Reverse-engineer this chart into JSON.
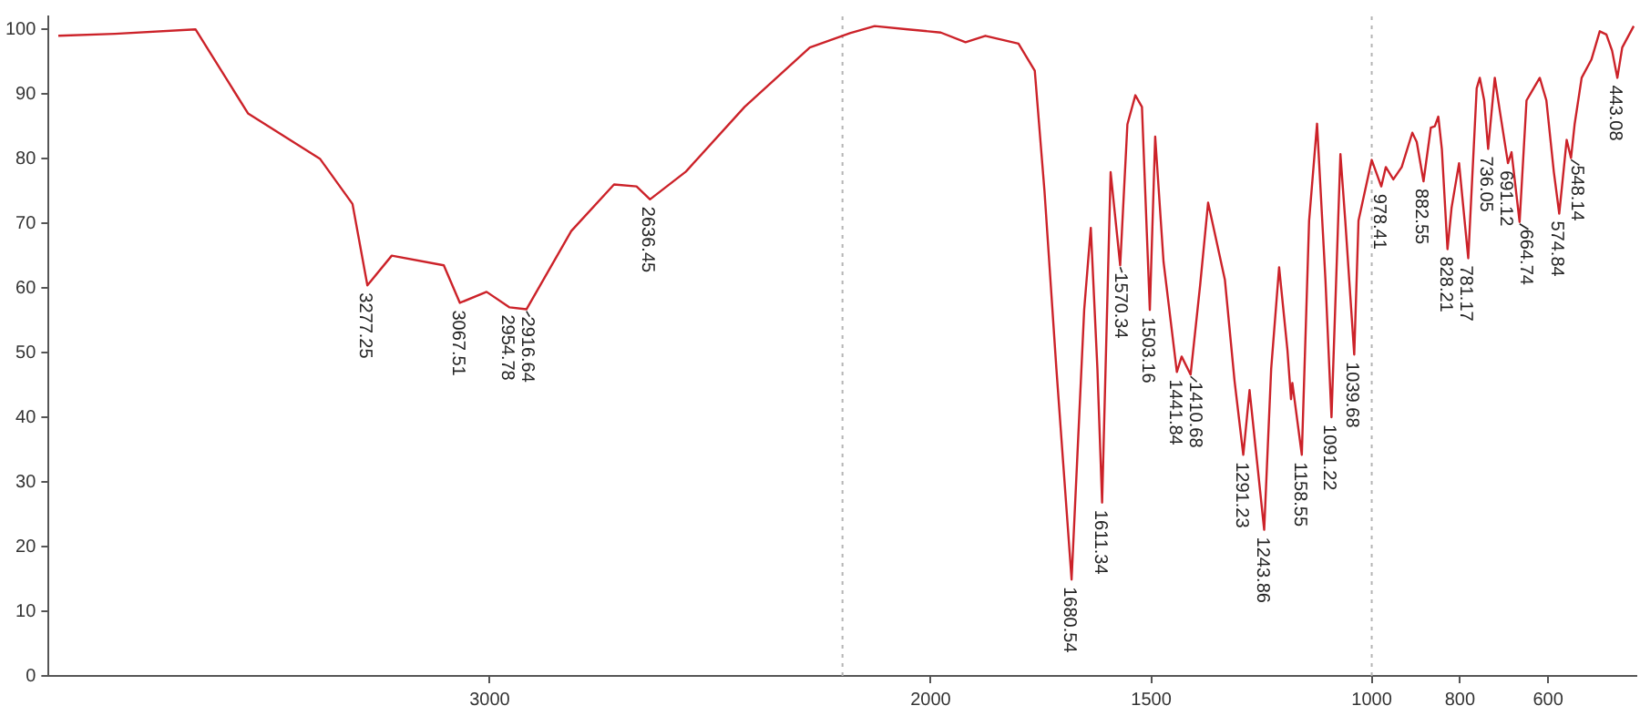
{
  "chart_data": {
    "type": "line",
    "x": [
      3978,
      3850,
      3667,
      3548,
      3385,
      3311,
      3277.25,
      3222,
      3104,
      3067.51,
      3007,
      2954.78,
      2916.64,
      2815,
      2718,
      2667,
      2636.45,
      2555,
      2422,
      2274,
      2183,
      2127,
      2052,
      1977,
      1921,
      1876,
      1801,
      1764,
      1742,
      1715,
      1680.54,
      1652,
      1637,
      1622,
      1611.34,
      1592,
      1570.34,
      1554,
      1536,
      1521,
      1503.16,
      1491,
      1472,
      1441.84,
      1431,
      1410.68,
      1389,
      1371,
      1333,
      1311,
      1291.23,
      1277,
      1243.86,
      1228,
      1210,
      1191,
      1183,
      1180,
      1158.55,
      1142,
      1124,
      1105,
      1091.22,
      1071,
      1060,
      1039.68,
      1030,
      1000,
      978.41,
      968,
      951,
      932,
      908,
      898,
      882.55,
      866,
      857,
      849,
      841,
      828.21,
      819,
      802,
      781.17,
      762,
      755,
      745,
      736.05,
      721,
      708,
      691.12,
      683,
      664.74,
      649,
      638,
      619,
      604,
      587,
      574.84,
      558,
      548.14,
      540,
      524,
      502,
      483,
      468,
      455,
      443.08,
      432,
      406
    ],
    "series": [
      {
        "color": "#cc2229",
        "values": [
          99,
          99.3,
          100,
          87,
          80,
          73,
          60.4,
          65,
          63.5,
          57.7,
          59.4,
          57,
          56.7,
          68.8,
          76,
          75.7,
          73.7,
          78,
          88,
          97.2,
          99.4,
          100.5,
          100,
          99.5,
          98,
          99,
          97.8,
          93.6,
          75,
          47.5,
          14.9,
          56.6,
          69.3,
          47.5,
          26.8,
          77.9,
          63.5,
          85.3,
          89.8,
          88,
          56.6,
          83.4,
          64,
          47,
          49.4,
          46.6,
          60.5,
          73.2,
          61.3,
          45.6,
          34.2,
          44.2,
          22.6,
          47.5,
          63.2,
          50.3,
          42.8,
          45.3,
          34.2,
          70.4,
          85.4,
          61.3,
          40,
          80.7,
          70.4,
          49.7,
          70.4,
          79.8,
          75.7,
          78.7,
          76.8,
          78.7,
          84,
          82.6,
          76.5,
          84.8,
          85,
          86.5,
          81.5,
          66,
          72.4,
          79.3,
          64.6,
          90.9,
          92.5,
          89,
          81.5,
          92.5,
          86.7,
          79.3,
          81,
          70.2,
          89,
          90.3,
          92.5,
          89,
          77.9,
          71.5,
          82.9,
          80.1,
          85.3,
          92.5,
          95.3,
          99.7,
          99.2,
          96.7,
          92.5,
          97.2,
          100.5
        ]
      }
    ],
    "xlim": [
      4000,
      400
    ],
    "xticks": [
      3000,
      2000,
      1500,
      1000,
      800,
      600
    ],
    "ylim": [
      0,
      102
    ],
    "yticks": [
      0,
      10,
      20,
      30,
      40,
      50,
      60,
      70,
      80,
      90,
      100
    ],
    "grid": false,
    "legend": false,
    "marker": "none",
    "line_style": "solid",
    "ref_lines": [
      {
        "axis": "x",
        "value": 2200,
        "color": "#b4b4b4",
        "line_style": "dotted"
      },
      {
        "axis": "x",
        "value": 1000,
        "color": "#b4b4b4",
        "line_style": "dotted"
      }
    ],
    "annotations": [
      {
        "text": "3277.25",
        "x": 3277.25,
        "y": 60.4
      },
      {
        "text": "3067.51",
        "x": 3067.51,
        "y": 57.7
      },
      {
        "text": "2954.78",
        "x": 2954.78,
        "y": 57
      },
      {
        "text": "2916.64",
        "x": 2916.64,
        "y": 56.7
      },
      {
        "text": "2636.45",
        "x": 2636.45,
        "y": 73.7
      },
      {
        "text": "1680.54",
        "x": 1680.54,
        "y": 14.9
      },
      {
        "text": "1611.34",
        "x": 1611.34,
        "y": 26.8
      },
      {
        "text": "1570.34",
        "x": 1570.34,
        "y": 63.5
      },
      {
        "text": "1503.16",
        "x": 1503.16,
        "y": 56.6
      },
      {
        "text": "1441.84",
        "x": 1441.84,
        "y": 47
      },
      {
        "text": "1410.68",
        "x": 1410.68,
        "y": 46.6
      },
      {
        "text": "1291.23",
        "x": 1291.23,
        "y": 34.2
      },
      {
        "text": "1243.86",
        "x": 1243.86,
        "y": 22.6
      },
      {
        "text": "1158.55",
        "x": 1158.55,
        "y": 34.2
      },
      {
        "text": "1091.22",
        "x": 1091.22,
        "y": 40
      },
      {
        "text": "1039.68",
        "x": 1039.68,
        "y": 49.7
      },
      {
        "text": "978.41",
        "x": 978.41,
        "y": 75.7
      },
      {
        "text": "882.55",
        "x": 882.55,
        "y": 76.5
      },
      {
        "text": "828.21",
        "x": 828.21,
        "y": 66
      },
      {
        "text": "781.17",
        "x": 781.17,
        "y": 64.6
      },
      {
        "text": "736.05",
        "x": 736.05,
        "y": 81.5
      },
      {
        "text": "691.12",
        "x": 691.12,
        "y": 79.3
      },
      {
        "text": "664.74",
        "x": 664.74,
        "y": 70.2
      },
      {
        "text": "574.84",
        "x": 574.84,
        "y": 71.5
      },
      {
        "text": "548.14",
        "x": 548.14,
        "y": 80.1
      },
      {
        "text": "443.08",
        "x": 443.08,
        "y": 92.5
      }
    ]
  }
}
